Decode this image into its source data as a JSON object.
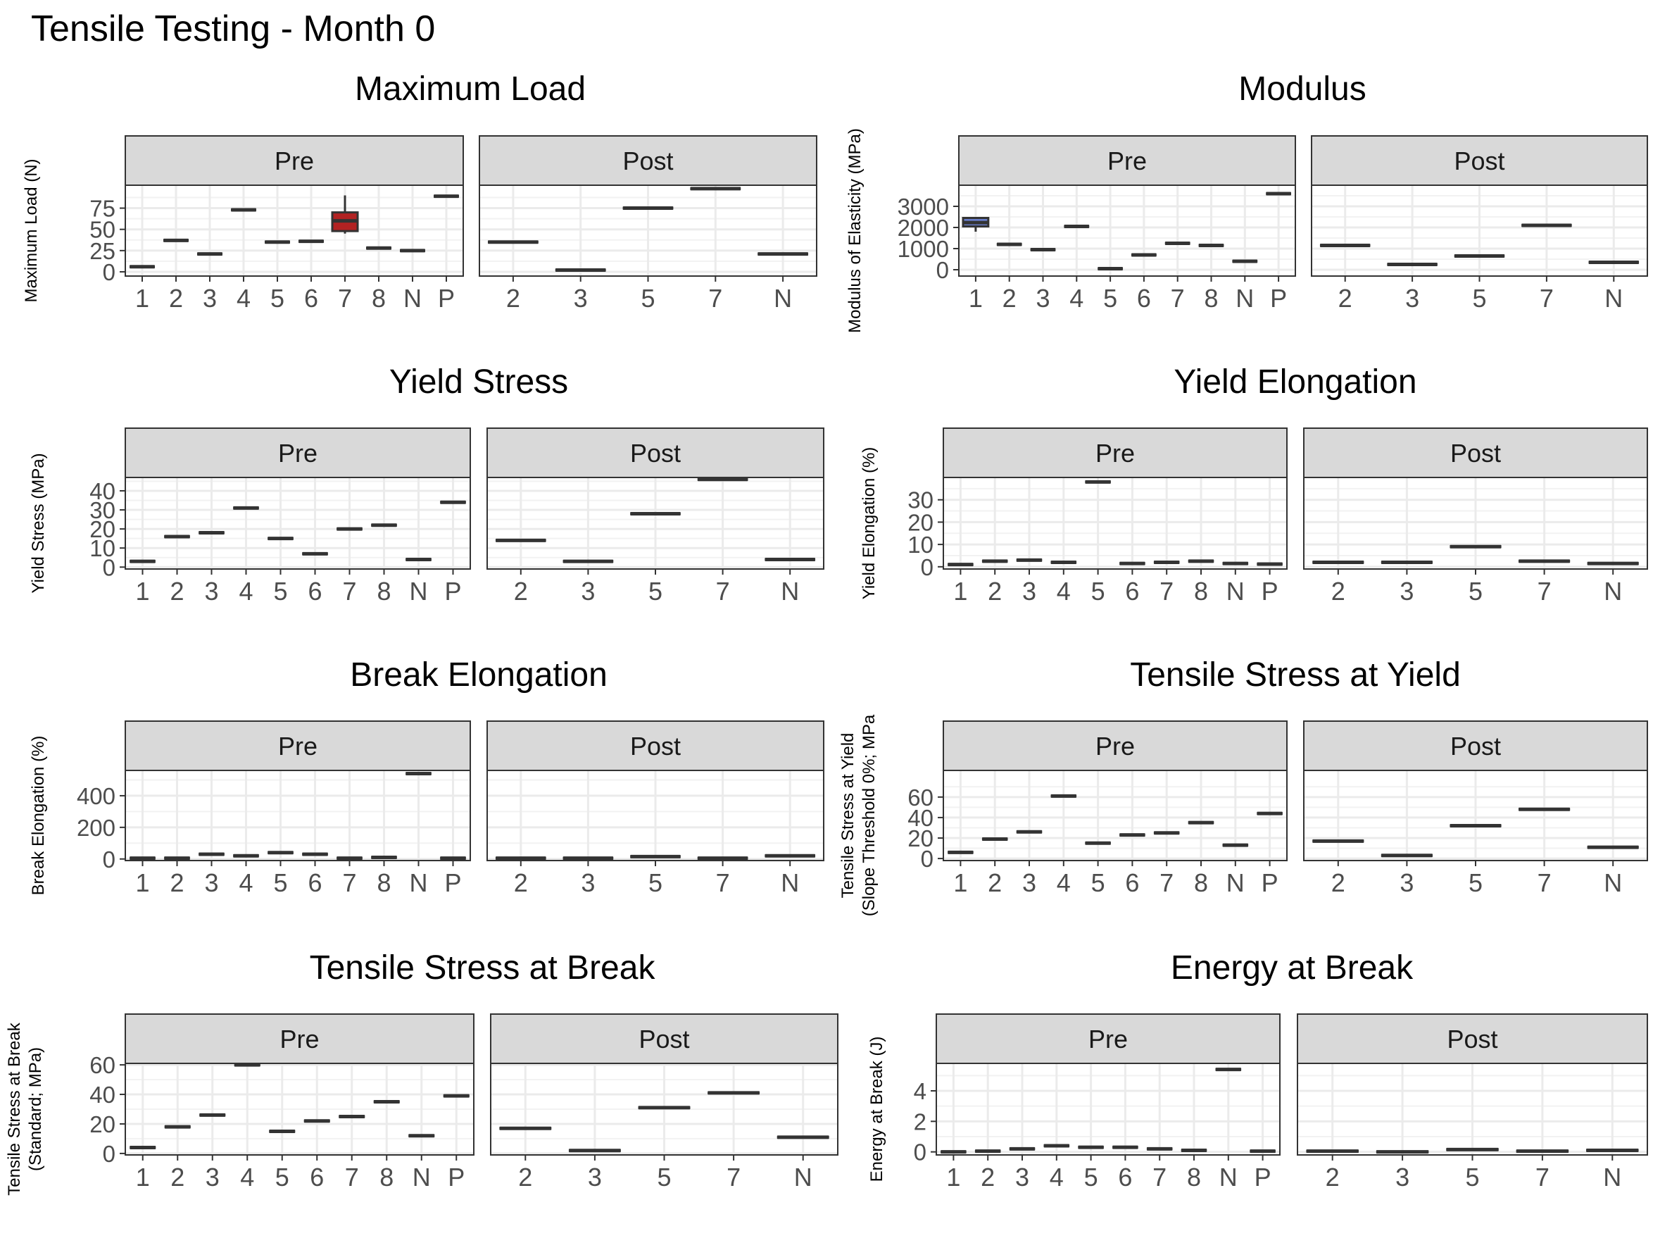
{
  "title": "Tensile Testing - Month 0",
  "colors": {
    "panel_border": "#333333",
    "strip_fill": "#d9d9d9",
    "grid": "#ebebeb",
    "box": "#333333",
    "tick_text": "#4d4d4d",
    "text": "#000000",
    "highlight_red": "#b22222",
    "highlight_blue": "#6a7fcf"
  },
  "chart_data": [
    {
      "type": "box",
      "title": "Maximum Load",
      "ylabel": [
        "Maximum Load (N)"
      ],
      "yticks": [
        0,
        25,
        50,
        75
      ],
      "ylim": [
        -5,
        102
      ],
      "facets": [
        {
          "strip": "Pre",
          "categories": [
            "1",
            "2",
            "3",
            "4",
            "5",
            "6",
            "7",
            "8",
            "N",
            "P"
          ],
          "values": [
            6,
            37,
            21,
            73,
            35,
            36,
            {
              "q1": 48,
              "q3": 70,
              "median": 60,
              "lo": 45,
              "hi": 90,
              "fill": "highlight_red"
            },
            28,
            25,
            89
          ]
        },
        {
          "strip": "Post",
          "categories": [
            "2",
            "3",
            "5",
            "7",
            "N"
          ],
          "values": [
            35,
            2,
            75,
            98,
            21
          ]
        }
      ]
    },
    {
      "type": "box",
      "title": "Modulus",
      "ylabel": [
        "Modulus of Elasticity (MPa)"
      ],
      "yticks": [
        0,
        1000,
        2000,
        3000
      ],
      "ylim": [
        -300,
        4000
      ],
      "facets": [
        {
          "strip": "Pre",
          "categories": [
            "1",
            "2",
            "3",
            "4",
            "5",
            "6",
            "7",
            "8",
            "N",
            "P"
          ],
          "values": [
            {
              "q1": 2050,
              "q3": 2450,
              "median": 2230,
              "lo": 1800,
              "hi": 2450,
              "fill": "highlight_blue"
            },
            1200,
            950,
            2050,
            50,
            700,
            1250,
            1150,
            400,
            3600
          ]
        },
        {
          "strip": "Post",
          "categories": [
            "2",
            "3",
            "5",
            "7",
            "N"
          ],
          "values": [
            1150,
            250,
            650,
            2100,
            350
          ]
        }
      ]
    },
    {
      "type": "box",
      "title": "Yield Stress",
      "ylabel": [
        "Yield Stress (MPa)"
      ],
      "yticks": [
        0,
        10,
        20,
        30,
        40
      ],
      "ylim": [
        -1,
        47
      ],
      "facets": [
        {
          "strip": "Pre",
          "categories": [
            "1",
            "2",
            "3",
            "4",
            "5",
            "6",
            "7",
            "8",
            "N",
            "P"
          ],
          "values": [
            3,
            16,
            18,
            31,
            15,
            7,
            20,
            22,
            4,
            34
          ]
        },
        {
          "strip": "Post",
          "categories": [
            "2",
            "3",
            "5",
            "7",
            "N"
          ],
          "values": [
            14,
            3,
            28,
            46,
            4
          ]
        }
      ]
    },
    {
      "type": "box",
      "title": "Yield Elongation",
      "ylabel": [
        "Yield Elongation (%)"
      ],
      "yticks": [
        0,
        10,
        20,
        30
      ],
      "ylim": [
        -1,
        40
      ],
      "facets": [
        {
          "strip": "Pre",
          "categories": [
            "1",
            "2",
            "3",
            "4",
            "5",
            "6",
            "7",
            "8",
            "N",
            "P"
          ],
          "values": [
            1,
            2.5,
            3,
            2,
            38,
            1.5,
            2,
            2.5,
            1.5,
            1.2
          ]
        },
        {
          "strip": "Post",
          "categories": [
            "2",
            "3",
            "5",
            "7",
            "N"
          ],
          "values": [
            2,
            2,
            9,
            2.5,
            1.5
          ]
        }
      ]
    },
    {
      "type": "box",
      "title": "Break Elongation",
      "ylabel": [
        "Break Elongation (%)"
      ],
      "yticks": [
        0,
        200,
        400
      ],
      "ylim": [
        -10,
        560
      ],
      "facets": [
        {
          "strip": "Pre",
          "categories": [
            "1",
            "2",
            "3",
            "4",
            "5",
            "6",
            "7",
            "8",
            "N",
            "P"
          ],
          "values": [
            5,
            5,
            30,
            20,
            40,
            30,
            5,
            10,
            540,
            5
          ]
        },
        {
          "strip": "Post",
          "categories": [
            "2",
            "3",
            "5",
            "7",
            "N"
          ],
          "values": [
            5,
            5,
            15,
            5,
            20
          ]
        }
      ]
    },
    {
      "type": "box",
      "title": "Tensile Stress at Yield",
      "ylabel": [
        "Tensile Stress at Yield",
        "(Slope Threshold 0%; MPa"
      ],
      "yticks": [
        0,
        20,
        40,
        60
      ],
      "ylim": [
        -2,
        86
      ],
      "facets": [
        {
          "strip": "Pre",
          "categories": [
            "1",
            "2",
            "3",
            "4",
            "5",
            "6",
            "7",
            "8",
            "N",
            "P"
          ],
          "values": [
            6,
            19,
            26,
            61,
            15,
            23,
            25,
            35,
            13,
            44
          ]
        },
        {
          "strip": "Post",
          "categories": [
            "2",
            "3",
            "5",
            "7",
            "N"
          ],
          "values": [
            17,
            3,
            32,
            48,
            11
          ]
        }
      ]
    },
    {
      "type": "box",
      "title": "Tensile Stress at Break",
      "ylabel": [
        "Tensile Stress at Break",
        "(Standard; MPa)"
      ],
      "yticks": [
        0,
        20,
        40,
        60
      ],
      "ylim": [
        -1,
        61
      ],
      "facets": [
        {
          "strip": "Pre",
          "categories": [
            "1",
            "2",
            "3",
            "4",
            "5",
            "6",
            "7",
            "8",
            "N",
            "P"
          ],
          "values": [
            4,
            18,
            26,
            60,
            15,
            22,
            25,
            35,
            12,
            39
          ]
        },
        {
          "strip": "Post",
          "categories": [
            "2",
            "3",
            "5",
            "7",
            "N"
          ],
          "values": [
            17,
            2,
            31,
            41,
            11
          ]
        }
      ]
    },
    {
      "type": "box",
      "title": "Energy at Break",
      "ylabel": [
        "Energy at Break (J)"
      ],
      "yticks": [
        0,
        2,
        4
      ],
      "ylim": [
        -0.2,
        5.8
      ],
      "facets": [
        {
          "strip": "Pre",
          "categories": [
            "1",
            "2",
            "3",
            "4",
            "5",
            "6",
            "7",
            "8",
            "N",
            "P"
          ],
          "values": [
            0,
            0.05,
            0.2,
            0.4,
            0.3,
            0.3,
            0.2,
            0.1,
            5.4,
            0.05
          ]
        },
        {
          "strip": "Post",
          "categories": [
            "2",
            "3",
            "5",
            "7",
            "N"
          ],
          "values": [
            0.05,
            0,
            0.15,
            0.05,
            0.1
          ]
        }
      ]
    }
  ]
}
